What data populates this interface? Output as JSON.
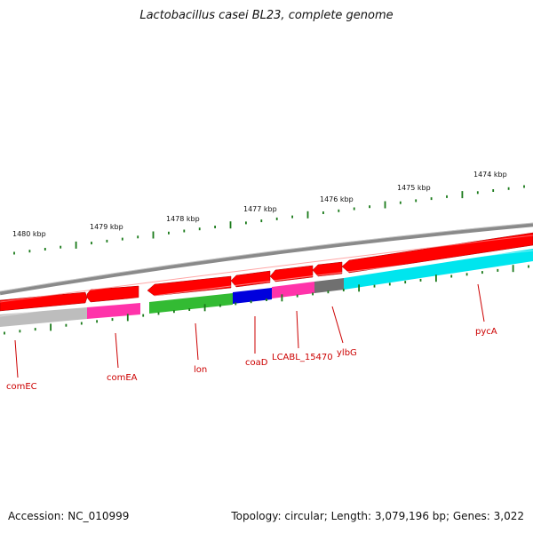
{
  "title": "Lactobacillus casei BL23, complete genome",
  "accession": "Accession: NC_010999",
  "summary": "Topology: circular; Length: 3,079,196 bp; Genes: 3,022",
  "colors": {
    "backbone": "#808080",
    "forward_cds": "#ff0000",
    "tick": "#1a7a1a",
    "label": "#cc0000"
  },
  "scale_labels": [
    {
      "text": "1480 kbp",
      "kb": 1480
    },
    {
      "text": "1479 kbp",
      "kb": 1479
    },
    {
      "text": "1478 kbp",
      "kb": 1478
    },
    {
      "text": "1477 kbp",
      "kb": 1477
    },
    {
      "text": "1476 kbp",
      "kb": 1476
    },
    {
      "text": "1475 kbp",
      "kb": 1475
    },
    {
      "text": "1474 kbp",
      "kb": 1474
    }
  ],
  "gene_labels": [
    {
      "name": "comEC",
      "color": "#bdbdbd"
    },
    {
      "name": "comEA",
      "color": "#ff33aa"
    },
    {
      "name": "lon",
      "color": "#33bb33"
    },
    {
      "name": "coaD",
      "color": "#0000dd"
    },
    {
      "name": "LCABL_15470",
      "color": "#ff33aa"
    },
    {
      "name": "ylbG",
      "color": "#707070"
    },
    {
      "name": "pycA",
      "color": "#00e5ee"
    }
  ]
}
